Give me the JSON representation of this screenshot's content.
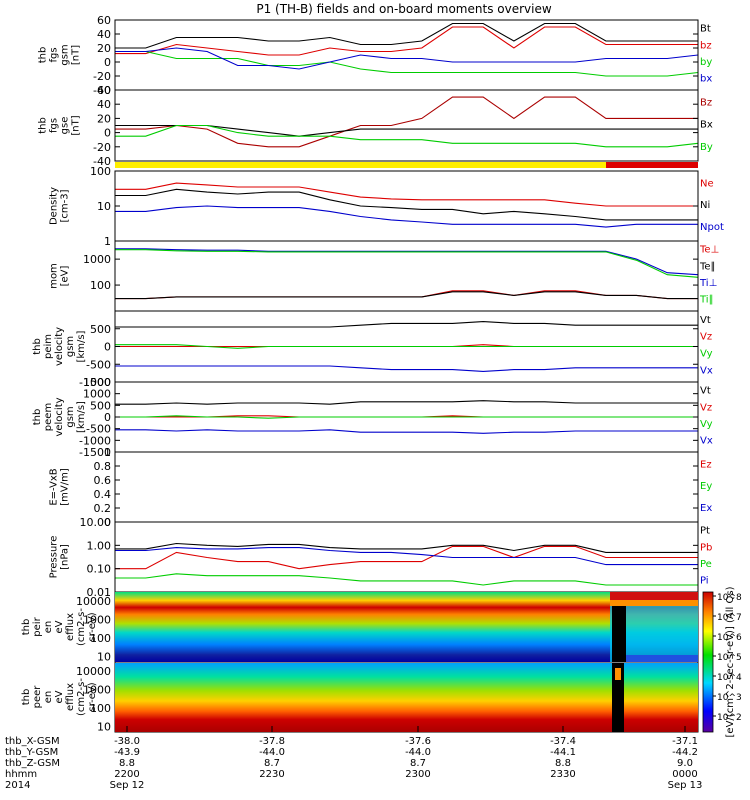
{
  "chart_data": {
    "type": "line",
    "title": "P1 (TH-B) fields and on-board moments overview",
    "panels": [
      {
        "id": "fgs_gsm",
        "ylabel": [
          "thb",
          "fgs",
          "gsm",
          "[nT]"
        ],
        "ylim": [
          -40,
          60
        ],
        "ticks": [
          -40,
          -20,
          0,
          20,
          40,
          60
        ],
        "scale": "linear",
        "series": [
          {
            "name": "Bt",
            "color": "#000000",
            "values": [
              20,
              20,
              35,
              35,
              35,
              30,
              30,
              35,
              25,
              25,
              30,
              55,
              55,
              30,
              55,
              55,
              30,
              30,
              30,
              30
            ]
          },
          {
            "name": "bz",
            "color": "#dd0000",
            "values": [
              12,
              12,
              25,
              20,
              15,
              10,
              10,
              20,
              15,
              15,
              20,
              50,
              50,
              20,
              50,
              50,
              25,
              25,
              25,
              25
            ]
          },
          {
            "name": "by",
            "color": "#00cc00",
            "values": [
              15,
              15,
              5,
              5,
              5,
              -5,
              -5,
              0,
              -10,
              -15,
              -15,
              -15,
              -15,
              -15,
              -15,
              -15,
              -20,
              -20,
              -20,
              -15
            ]
          },
          {
            "name": "bx",
            "color": "#0000cc",
            "values": [
              15,
              15,
              20,
              15,
              -5,
              -5,
              -10,
              0,
              10,
              5,
              5,
              0,
              0,
              0,
              0,
              0,
              5,
              5,
              5,
              10
            ]
          }
        ]
      },
      {
        "id": "fgs_gse",
        "ylabel": [
          "thb",
          "fgs",
          "gse",
          "[nT]"
        ],
        "ylim": [
          -40,
          60
        ],
        "ticks": [
          -40,
          -20,
          0,
          20,
          40,
          60
        ],
        "scale": "linear",
        "series": [
          {
            "name": "Bz",
            "color": "#aa0000",
            "values": [
              5,
              5,
              10,
              5,
              -15,
              -20,
              -20,
              -5,
              10,
              10,
              20,
              50,
              50,
              20,
              50,
              50,
              20,
              20,
              20,
              20
            ]
          },
          {
            "name": "Bx",
            "color": "#000000",
            "values": [
              10,
              10,
              10,
              10,
              5,
              0,
              -5,
              0,
              5,
              5,
              5,
              5,
              5,
              5,
              5,
              5,
              5,
              5,
              5,
              5
            ]
          },
          {
            "name": "By",
            "color": "#00cc00",
            "values": [
              -5,
              -5,
              10,
              10,
              0,
              -5,
              -5,
              -5,
              -10,
              -10,
              -10,
              -15,
              -15,
              -15,
              -15,
              -15,
              -20,
              -20,
              -20,
              -15
            ]
          }
        ]
      },
      {
        "id": "density",
        "ylabel": [
          "Density",
          "[cm-3]"
        ],
        "ylim": [
          1,
          100
        ],
        "ticks": [
          1,
          10,
          100
        ],
        "scale": "log",
        "series": [
          {
            "name": "Ne",
            "color": "#dd0000",
            "values": [
              30,
              30,
              45,
              40,
              35,
              35,
              35,
              25,
              18,
              16,
              15,
              15,
              15,
              15,
              15,
              12,
              10,
              10,
              10,
              10
            ]
          },
          {
            "name": "Ni",
            "color": "#000000",
            "values": [
              20,
              20,
              30,
              25,
              22,
              25,
              25,
              15,
              10,
              9,
              8,
              8,
              6,
              7,
              6,
              5,
              4,
              4,
              4,
              4
            ]
          },
          {
            "name": "Npot",
            "color": "#0000cc",
            "values": [
              7,
              7,
              9,
              10,
              9,
              9,
              9,
              7,
              5,
              4,
              3.5,
              3,
              3,
              3,
              3,
              3,
              2.5,
              3,
              3,
              3
            ]
          }
        ]
      },
      {
        "id": "temperature",
        "ylabel": [
          "mom",
          "[eV]"
        ],
        "ylim": [
          10,
          5000
        ],
        "ticks": [
          100,
          1000
        ],
        "scale": "log",
        "series": [
          {
            "name": "Te⊥",
            "color": "#dd0000",
            "values": [
              30,
              30,
              35,
              35,
              35,
              35,
              35,
              35,
              35,
              35,
              35,
              60,
              60,
              40,
              60,
              60,
              40,
              40,
              30,
              30
            ]
          },
          {
            "name": "Te∥",
            "color": "#000000",
            "values": [
              30,
              30,
              35,
              35,
              35,
              35,
              35,
              35,
              35,
              35,
              35,
              55,
              55,
              40,
              55,
              55,
              40,
              40,
              30,
              30
            ]
          },
          {
            "name": "Ti⊥",
            "color": "#0000cc",
            "values": [
              2500,
              2500,
              2300,
              2200,
              2200,
              2000,
              2000,
              2000,
              2000,
              2000,
              2000,
              2000,
              2000,
              2000,
              2000,
              2000,
              2000,
              1000,
              300,
              250
            ]
          },
          {
            "name": "Ti∥",
            "color": "#00cc00",
            "values": [
              2300,
              2300,
              2100,
              2000,
              2000,
              1900,
              1900,
              1900,
              1900,
              1900,
              1900,
              1900,
              1900,
              1900,
              1900,
              1900,
              1900,
              900,
              250,
              200
            ]
          }
        ]
      },
      {
        "id": "peim_velocity",
        "ylabel": [
          "thb",
          "peim",
          "velocity",
          "gsm",
          "[km/s]"
        ],
        "ylim": [
          -1000,
          1000
        ],
        "ticks": [
          -1000,
          -500,
          0,
          500
        ],
        "scale": "linear",
        "series": [
          {
            "name": "Vt",
            "color": "#000000",
            "values": [
              550,
              550,
              550,
              550,
              550,
              550,
              550,
              550,
              600,
              650,
              650,
              650,
              700,
              650,
              650,
              600,
              600,
              600,
              600,
              600
            ]
          },
          {
            "name": "Vz",
            "color": "#dd0000",
            "values": [
              0,
              0,
              0,
              0,
              0,
              0,
              0,
              0,
              0,
              0,
              0,
              0,
              50,
              0,
              0,
              0,
              0,
              0,
              0,
              0
            ]
          },
          {
            "name": "Vy",
            "color": "#00cc00",
            "values": [
              50,
              50,
              50,
              0,
              -50,
              0,
              0,
              0,
              0,
              0,
              0,
              0,
              0,
              0,
              0,
              0,
              0,
              0,
              0,
              0
            ]
          },
          {
            "name": "Vx",
            "color": "#0000cc",
            "values": [
              -550,
              -550,
              -550,
              -550,
              -550,
              -550,
              -550,
              -550,
              -600,
              -650,
              -650,
              -650,
              -700,
              -650,
              -650,
              -600,
              -600,
              -600,
              -600,
              -600
            ]
          }
        ]
      },
      {
        "id": "peem_velocity",
        "ylabel": [
          "thb",
          "peem",
          "velocity",
          "gsm",
          "[km/s]"
        ],
        "ylim": [
          -1500,
          1500
        ],
        "ticks": [
          -1500,
          -1000,
          -500,
          0,
          500,
          1000,
          1500
        ],
        "scale": "linear",
        "series": [
          {
            "name": "Vt",
            "color": "#000000",
            "values": [
              550,
              550,
              600,
              550,
              600,
              600,
              600,
              550,
              650,
              650,
              650,
              650,
              700,
              650,
              650,
              600,
              600,
              600,
              600,
              600
            ]
          },
          {
            "name": "Vz",
            "color": "#dd0000",
            "values": [
              0,
              0,
              0,
              0,
              50,
              50,
              0,
              0,
              0,
              0,
              0,
              50,
              0,
              0,
              0,
              0,
              0,
              0,
              0,
              0
            ]
          },
          {
            "name": "Vy",
            "color": "#00cc00",
            "values": [
              0,
              0,
              50,
              0,
              0,
              -50,
              0,
              0,
              0,
              0,
              0,
              0,
              0,
              0,
              0,
              0,
              0,
              0,
              0,
              0
            ]
          },
          {
            "name": "Vx",
            "color": "#0000cc",
            "values": [
              -550,
              -550,
              -600,
              -550,
              -600,
              -600,
              -600,
              -550,
              -650,
              -650,
              -650,
              -650,
              -700,
              -650,
              -650,
              -600,
              -600,
              -600,
              -600,
              -600
            ]
          }
        ]
      },
      {
        "id": "efield",
        "ylabel": [
          "E=-VxB",
          "[mV/m]"
        ],
        "ylim": [
          0,
          1
        ],
        "ticks": [
          0.0,
          0.2,
          0.4,
          0.6,
          0.8,
          1.0
        ],
        "scale": "linear",
        "series": [
          {
            "name": "Ez",
            "color": "#dd0000",
            "values": []
          },
          {
            "name": "Ey",
            "color": "#00cc00",
            "values": []
          },
          {
            "name": "Ex",
            "color": "#0000cc",
            "values": []
          }
        ]
      },
      {
        "id": "pressure",
        "ylabel": [
          "Pressure",
          "[nPa]"
        ],
        "ylim": [
          0.01,
          10
        ],
        "ticks": [
          0.01,
          0.1,
          1.0,
          10.0
        ],
        "tick_labels": [
          "0.01",
          "0.10",
          "1.00",
          "10.00"
        ],
        "scale": "log",
        "series": [
          {
            "name": "Pt",
            "color": "#000000",
            "values": [
              0.7,
              0.7,
              1.2,
              1.0,
              0.9,
              1.1,
              1.1,
              0.8,
              0.7,
              0.7,
              0.7,
              1.0,
              1.0,
              0.6,
              1.0,
              1.0,
              0.5,
              0.5,
              0.5,
              0.5
            ]
          },
          {
            "name": "Pb",
            "color": "#dd0000",
            "values": [
              0.1,
              0.1,
              0.5,
              0.3,
              0.2,
              0.2,
              0.1,
              0.15,
              0.2,
              0.2,
              0.2,
              0.9,
              0.9,
              0.3,
              0.9,
              0.9,
              0.3,
              0.3,
              0.3,
              0.3
            ]
          },
          {
            "name": "Pe",
            "color": "#00cc00",
            "values": [
              0.04,
              0.04,
              0.06,
              0.05,
              0.05,
              0.05,
              0.05,
              0.04,
              0.03,
              0.03,
              0.03,
              0.03,
              0.02,
              0.03,
              0.03,
              0.03,
              0.02,
              0.02,
              0.02,
              0.02
            ]
          },
          {
            "name": "Pi",
            "color": "#0000cc",
            "values": [
              0.6,
              0.6,
              0.8,
              0.7,
              0.7,
              0.8,
              0.8,
              0.6,
              0.5,
              0.5,
              0.4,
              0.3,
              0.3,
              0.3,
              0.3,
              0.3,
              0.15,
              0.15,
              0.15,
              0.15
            ]
          }
        ]
      },
      {
        "id": "peir_spectrogram",
        "type": "heatmap",
        "ylabel": [
          "thb",
          "peir",
          "en",
          "eV",
          "efflux",
          "(cm2-s-",
          "sr-eV)"
        ],
        "ylim": [
          5,
          30000
        ],
        "ticks": [
          10,
          100,
          1000,
          10000
        ],
        "tick_labels": [
          "10",
          "100",
          "1000",
          "10000"
        ],
        "scale": "log"
      },
      {
        "id": "peer_spectrogram",
        "type": "heatmap",
        "ylabel": [
          "thb",
          "peer",
          "en",
          "eV",
          "efflux",
          "(cm2-s-",
          "sr-eV)"
        ],
        "ylim": [
          5,
          30000
        ],
        "ticks": [
          10,
          100,
          1000,
          10000
        ],
        "tick_labels": [
          "10",
          "100",
          "1000",
          "10000"
        ],
        "scale": "log"
      }
    ],
    "colorbar": {
      "label": "[eV/(cm^2-sec-sr-eV)] (All Qs)",
      "ticks": [
        "10^8",
        "10^7",
        "10^6",
        "10^5",
        "10^4",
        "10^3",
        "10^2"
      ]
    },
    "status_bar": {
      "segments": [
        {
          "color": "#ffee00",
          "from": 0.0,
          "to": 0.84
        },
        {
          "color": "#dd0000",
          "from": 0.84,
          "to": 1.0
        }
      ]
    },
    "xaxis": {
      "rows": [
        {
          "label": "thb_X-GSM",
          "values": [
            "-38.0",
            "-37.8",
            "-37.6",
            "-37.4",
            "-37.1"
          ]
        },
        {
          "label": "thb_Y-GSM",
          "values": [
            "-43.9",
            "-44.0",
            "-44.0",
            "-44.1",
            "-44.2"
          ]
        },
        {
          "label": "thb_Z-GSM",
          "values": [
            "8.8",
            "8.7",
            "8.7",
            "8.8",
            "9.0"
          ]
        },
        {
          "label": "hhmm",
          "values": [
            "2200",
            "2230",
            "2300",
            "2330",
            "0000"
          ]
        },
        {
          "label": "2014",
          "values": [
            "Sep 12",
            "",
            "",
            "",
            "Sep 13"
          ]
        }
      ]
    }
  }
}
